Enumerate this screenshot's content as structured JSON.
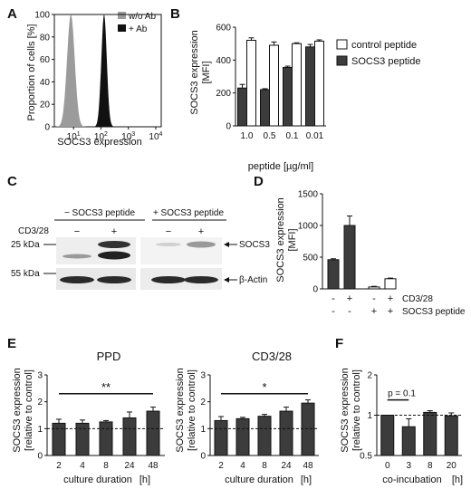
{
  "panels": {
    "A": "A",
    "B": "B",
    "C": "C",
    "D": "D",
    "E": "E",
    "F": "F"
  },
  "colors": {
    "gray_hist": "#9b9b9b",
    "black_hist": "#111111",
    "dark_bar": "#3c3c3c",
    "white_bar": "#ffffff"
  },
  "chart_data": [
    {
      "id": "A",
      "type": "area",
      "xlabel": "SOCS3 expression",
      "ylabel": "Proportion of cells [%]",
      "xscale": "log",
      "xtick_labels": [
        "10^1",
        "10^2",
        "10^3",
        "10^4"
      ],
      "xticks": [
        10,
        100,
        1000,
        10000
      ],
      "yticks": [
        0,
        20,
        40,
        60,
        80,
        100
      ],
      "ylim": [
        0,
        100
      ],
      "legend": [
        "w/o Ab",
        "+ Ab"
      ],
      "legend_placement": "top-right",
      "series": [
        {
          "name": "w/o Ab",
          "color": "#9b9b9b",
          "center": 8,
          "width": 0.14,
          "peak": 100
        },
        {
          "name": "+ Ab",
          "color": "#111111",
          "center": 130,
          "width": 0.1,
          "peak": 100
        }
      ]
    },
    {
      "id": "B",
      "type": "bar",
      "ylabel": "SOCS3 expression [MFI]",
      "xlabel": "peptide [µg/ml]",
      "categories": [
        "1.0",
        "0.5",
        "0.1",
        "0.01"
      ],
      "ylim": [
        0,
        600
      ],
      "yticks": [
        0,
        200,
        400,
        600
      ],
      "legend_placement": "right",
      "series": [
        {
          "name": "SOCS3 peptide",
          "color": "#3c3c3c",
          "values": [
            230,
            220,
            355,
            480
          ],
          "errors": [
            22,
            6,
            8,
            15
          ]
        },
        {
          "name": "control peptide",
          "color": "#ffffff",
          "values": [
            520,
            490,
            500,
            515
          ],
          "errors": [
            15,
            20,
            5,
            8
          ]
        }
      ]
    },
    {
      "id": "D",
      "type": "bar",
      "ylabel": "SOCS3 expression [MFI]",
      "categories": [
        "1",
        "2",
        "3",
        "4"
      ],
      "ylim": [
        0,
        1500
      ],
      "yticks": [
        0,
        500,
        1000,
        1500
      ],
      "values": [
        460,
        1000,
        30,
        160
      ],
      "errors": [
        15,
        150,
        10,
        10
      ],
      "bar_colors": [
        "#3c3c3c",
        "#3c3c3c",
        "#ffffff",
        "#ffffff"
      ],
      "row_labels": [
        "CD3/28",
        "SOCS3 peptide"
      ],
      "row_signs": [
        [
          "-",
          "+",
          "-",
          "+"
        ],
        [
          "-",
          "-",
          "+",
          "+"
        ]
      ]
    },
    {
      "id": "E1",
      "type": "bar",
      "title": "PPD",
      "ylabel": "SOCS3 expression [relative to control]",
      "xlabel": "culture duration",
      "xunit": "[h]",
      "categories": [
        "2",
        "4",
        "8",
        "24",
        "48"
      ],
      "ylim": [
        0,
        3
      ],
      "yticks": [
        0,
        1,
        2,
        3
      ],
      "values": [
        1.2,
        1.2,
        1.25,
        1.4,
        1.65
      ],
      "errors": [
        0.15,
        0.12,
        0.05,
        0.22,
        0.15
      ],
      "reference_line": 1,
      "significance": "**"
    },
    {
      "id": "E2",
      "type": "bar",
      "title": "CD3/28",
      "ylabel": "SOCS3 expression [relative to control]",
      "xlabel": "culture duration",
      "xunit": "[h]",
      "categories": [
        "2",
        "4",
        "8",
        "24",
        "48"
      ],
      "ylim": [
        0,
        3
      ],
      "yticks": [
        0,
        1,
        2,
        3
      ],
      "values": [
        1.3,
        1.37,
        1.46,
        1.65,
        1.95
      ],
      "errors": [
        0.15,
        0.05,
        0.07,
        0.15,
        0.12
      ],
      "reference_line": 1,
      "significance": "*"
    },
    {
      "id": "F",
      "type": "bar",
      "ylabel": "SOCS3 expression [relative to control]",
      "xlabel": "co-incubation",
      "xunit": "[h]",
      "categories": [
        "0",
        "3",
        "8",
        "20"
      ],
      "yscale": "log",
      "ylim": [
        0.5,
        2
      ],
      "yticks": [
        0.5,
        1,
        2
      ],
      "values": [
        1.0,
        0.82,
        1.05,
        0.99
      ],
      "errors": [
        0.0,
        0.12,
        0.03,
        0.05
      ],
      "reference_line": 1,
      "annotation": "p = 0.1"
    }
  ],
  "blot": {
    "groups": [
      "− SOCS3 peptide",
      "+ SOCS3 peptide"
    ],
    "row_label": "CD3/28",
    "signs": [
      "−",
      "+",
      "−",
      "+"
    ],
    "mw_top": "25 kDa",
    "mw_bottom": "55 kDa",
    "band_top": "SOCS3",
    "band_bottom": "β-Actin"
  }
}
